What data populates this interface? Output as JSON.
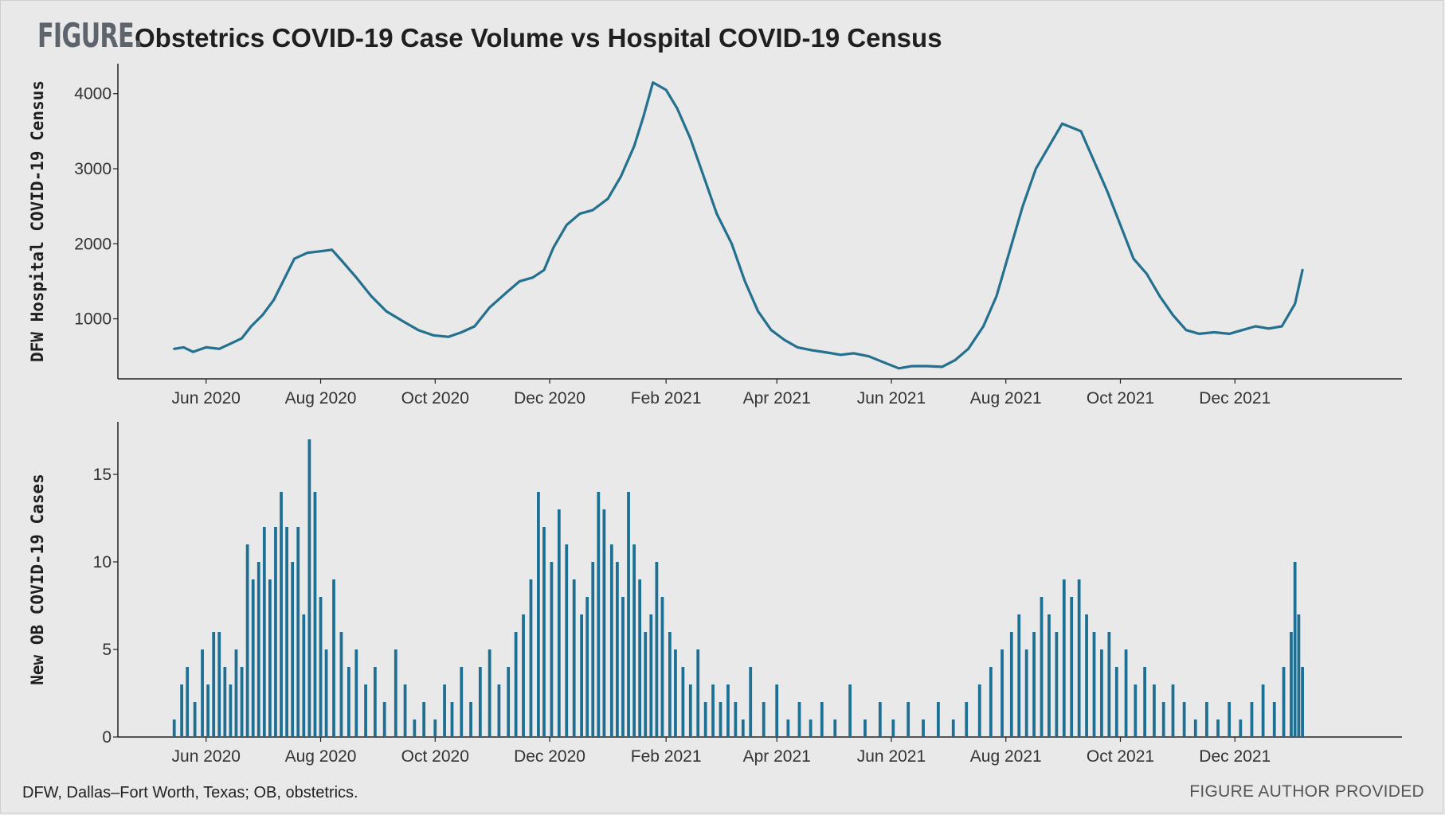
{
  "header": {
    "figure_label": "FIGURE.",
    "title": "Obstetrics COVID-19 Case Volume vs Hospital COVID-19 Census"
  },
  "footer": {
    "footnote": "DFW, Dallas–Fort Worth, Texas; OB, obstetrics.",
    "credit": "FIGURE AUTHOR PROVIDED"
  },
  "chart_data": [
    {
      "type": "line",
      "ylabel": "DFW Hospital COVID-19 Census",
      "xlabel": "",
      "color": "#24708f",
      "x_tick_labels": [
        "Jun 2020",
        "Aug 2020",
        "Oct 2020",
        "Dec 2020",
        "Feb 2021",
        "Apr 2021",
        "Jun 2021",
        "Aug 2021",
        "Oct 2021",
        "Dec 2021"
      ],
      "x_ticks": [
        "2020-06-01",
        "2020-08-01",
        "2020-10-01",
        "2020-12-01",
        "2021-02-01",
        "2021-04-01",
        "2021-06-01",
        "2021-08-01",
        "2021-10-01",
        "2021-12-01"
      ],
      "xlim": [
        "2020-04-15",
        "2022-02-28"
      ],
      "y_ticks": [
        1000,
        2000,
        3000,
        4000
      ],
      "ylim": [
        200,
        4400
      ],
      "series": [
        {
          "points": [
            [
              "2020-05-15",
              600
            ],
            [
              "2020-05-20",
              620
            ],
            [
              "2020-05-25",
              560
            ],
            [
              "2020-06-01",
              620
            ],
            [
              "2020-06-08",
              600
            ],
            [
              "2020-06-15",
              680
            ],
            [
              "2020-06-20",
              740
            ],
            [
              "2020-06-25",
              900
            ],
            [
              "2020-07-01",
              1050
            ],
            [
              "2020-07-07",
              1250
            ],
            [
              "2020-07-12",
              1500
            ],
            [
              "2020-07-18",
              1800
            ],
            [
              "2020-07-25",
              1880
            ],
            [
              "2020-08-01",
              1900
            ],
            [
              "2020-08-07",
              1920
            ],
            [
              "2020-08-12",
              1780
            ],
            [
              "2020-08-20",
              1550
            ],
            [
              "2020-08-28",
              1300
            ],
            [
              "2020-09-05",
              1100
            ],
            [
              "2020-09-15",
              950
            ],
            [
              "2020-09-22",
              850
            ],
            [
              "2020-09-30",
              780
            ],
            [
              "2020-10-08",
              760
            ],
            [
              "2020-10-15",
              820
            ],
            [
              "2020-10-22",
              900
            ],
            [
              "2020-10-30",
              1150
            ],
            [
              "2020-11-08",
              1350
            ],
            [
              "2020-11-15",
              1500
            ],
            [
              "2020-11-22",
              1550
            ],
            [
              "2020-11-28",
              1650
            ],
            [
              "2020-12-03",
              1950
            ],
            [
              "2020-12-10",
              2250
            ],
            [
              "2020-12-17",
              2400
            ],
            [
              "2020-12-24",
              2450
            ],
            [
              "2021-01-01",
              2600
            ],
            [
              "2021-01-08",
              2900
            ],
            [
              "2021-01-15",
              3300
            ],
            [
              "2021-01-20",
              3700
            ],
            [
              "2021-01-25",
              4150
            ],
            [
              "2021-02-01",
              4050
            ],
            [
              "2021-02-07",
              3800
            ],
            [
              "2021-02-14",
              3400
            ],
            [
              "2021-02-21",
              2900
            ],
            [
              "2021-02-28",
              2400
            ],
            [
              "2021-03-08",
              2000
            ],
            [
              "2021-03-15",
              1500
            ],
            [
              "2021-03-22",
              1100
            ],
            [
              "2021-03-29",
              850
            ],
            [
              "2021-04-05",
              720
            ],
            [
              "2021-04-12",
              620
            ],
            [
              "2021-04-20",
              580
            ],
            [
              "2021-04-28",
              550
            ],
            [
              "2021-05-05",
              520
            ],
            [
              "2021-05-12",
              540
            ],
            [
              "2021-05-20",
              500
            ],
            [
              "2021-05-28",
              420
            ],
            [
              "2021-06-05",
              340
            ],
            [
              "2021-06-12",
              370
            ],
            [
              "2021-06-20",
              370
            ],
            [
              "2021-06-28",
              360
            ],
            [
              "2021-07-05",
              450
            ],
            [
              "2021-07-12",
              600
            ],
            [
              "2021-07-20",
              900
            ],
            [
              "2021-07-27",
              1300
            ],
            [
              "2021-08-03",
              1900
            ],
            [
              "2021-08-10",
              2500
            ],
            [
              "2021-08-17",
              3000
            ],
            [
              "2021-08-24",
              3300
            ],
            [
              "2021-08-31",
              3600
            ],
            [
              "2021-09-05",
              3550
            ],
            [
              "2021-09-10",
              3500
            ],
            [
              "2021-09-17",
              3100
            ],
            [
              "2021-09-24",
              2700
            ],
            [
              "2021-10-01",
              2250
            ],
            [
              "2021-10-08",
              1800
            ],
            [
              "2021-10-15",
              1600
            ],
            [
              "2021-10-22",
              1300
            ],
            [
              "2021-10-29",
              1050
            ],
            [
              "2021-11-05",
              850
            ],
            [
              "2021-11-12",
              800
            ],
            [
              "2021-11-20",
              820
            ],
            [
              "2021-11-28",
              800
            ],
            [
              "2021-12-05",
              850
            ],
            [
              "2021-12-12",
              900
            ],
            [
              "2021-12-19",
              870
            ],
            [
              "2021-12-26",
              900
            ],
            [
              "2022-01-02",
              1200
            ],
            [
              "2022-01-06",
              1650
            ]
          ]
        }
      ]
    },
    {
      "type": "bar",
      "ylabel": "New OB COVID-19 Cases",
      "xlabel": "",
      "color": "#1d6f93",
      "x_tick_labels": [
        "Jun 2020",
        "Aug 2020",
        "Oct 2020",
        "Dec 2020",
        "Feb 2021",
        "Apr 2021",
        "Jun 2021",
        "Aug 2021",
        "Oct 2021",
        "Dec 2021"
      ],
      "x_ticks": [
        "2020-06-01",
        "2020-08-01",
        "2020-10-01",
        "2020-12-01",
        "2021-02-01",
        "2021-04-01",
        "2021-06-01",
        "2021-08-01",
        "2021-10-01",
        "2021-12-01"
      ],
      "xlim": [
        "2020-04-15",
        "2022-02-28"
      ],
      "y_ticks": [
        0,
        5,
        10,
        15
      ],
      "ylim": [
        0,
        18
      ],
      "bar_width_days": 1,
      "series": [
        {
          "points": [
            [
              "2020-05-15",
              1
            ],
            [
              "2020-05-19",
              3
            ],
            [
              "2020-05-22",
              4
            ],
            [
              "2020-05-26",
              2
            ],
            [
              "2020-05-30",
              5
            ],
            [
              "2020-06-02",
              3
            ],
            [
              "2020-06-05",
              6
            ],
            [
              "2020-06-08",
              6
            ],
            [
              "2020-06-11",
              4
            ],
            [
              "2020-06-14",
              3
            ],
            [
              "2020-06-17",
              5
            ],
            [
              "2020-06-20",
              4
            ],
            [
              "2020-06-23",
              11
            ],
            [
              "2020-06-26",
              9
            ],
            [
              "2020-06-29",
              10
            ],
            [
              "2020-07-02",
              12
            ],
            [
              "2020-07-05",
              9
            ],
            [
              "2020-07-08",
              12
            ],
            [
              "2020-07-11",
              14
            ],
            [
              "2020-07-14",
              12
            ],
            [
              "2020-07-17",
              10
            ],
            [
              "2020-07-20",
              12
            ],
            [
              "2020-07-23",
              7
            ],
            [
              "2020-07-26",
              17
            ],
            [
              "2020-07-29",
              14
            ],
            [
              "2020-08-01",
              8
            ],
            [
              "2020-08-04",
              5
            ],
            [
              "2020-08-08",
              9
            ],
            [
              "2020-08-12",
              6
            ],
            [
              "2020-08-16",
              4
            ],
            [
              "2020-08-20",
              5
            ],
            [
              "2020-08-25",
              3
            ],
            [
              "2020-08-30",
              4
            ],
            [
              "2020-09-04",
              2
            ],
            [
              "2020-09-10",
              5
            ],
            [
              "2020-09-15",
              3
            ],
            [
              "2020-09-20",
              1
            ],
            [
              "2020-09-25",
              2
            ],
            [
              "2020-10-01",
              1
            ],
            [
              "2020-10-06",
              3
            ],
            [
              "2020-10-10",
              2
            ],
            [
              "2020-10-15",
              4
            ],
            [
              "2020-10-20",
              2
            ],
            [
              "2020-10-25",
              4
            ],
            [
              "2020-10-30",
              5
            ],
            [
              "2020-11-04",
              3
            ],
            [
              "2020-11-09",
              4
            ],
            [
              "2020-11-13",
              6
            ],
            [
              "2020-11-17",
              7
            ],
            [
              "2020-11-21",
              9
            ],
            [
              "2020-11-25",
              14
            ],
            [
              "2020-11-28",
              12
            ],
            [
              "2020-12-02",
              10
            ],
            [
              "2020-12-06",
              13
            ],
            [
              "2020-12-10",
              11
            ],
            [
              "2020-12-14",
              9
            ],
            [
              "2020-12-18",
              7
            ],
            [
              "2020-12-21",
              8
            ],
            [
              "2020-12-24",
              10
            ],
            [
              "2020-12-27",
              14
            ],
            [
              "2020-12-30",
              13
            ],
            [
              "2021-01-03",
              11
            ],
            [
              "2021-01-06",
              10
            ],
            [
              "2021-01-09",
              8
            ],
            [
              "2021-01-12",
              14
            ],
            [
              "2021-01-15",
              11
            ],
            [
              "2021-01-18",
              9
            ],
            [
              "2021-01-21",
              6
            ],
            [
              "2021-01-24",
              7
            ],
            [
              "2021-01-27",
              10
            ],
            [
              "2021-01-30",
              8
            ],
            [
              "2021-02-03",
              6
            ],
            [
              "2021-02-06",
              5
            ],
            [
              "2021-02-10",
              4
            ],
            [
              "2021-02-14",
              3
            ],
            [
              "2021-02-18",
              5
            ],
            [
              "2021-02-22",
              2
            ],
            [
              "2021-02-26",
              3
            ],
            [
              "2021-03-02",
              2
            ],
            [
              "2021-03-06",
              3
            ],
            [
              "2021-03-10",
              2
            ],
            [
              "2021-03-14",
              1
            ],
            [
              "2021-03-18",
              4
            ],
            [
              "2021-03-25",
              2
            ],
            [
              "2021-04-01",
              3
            ],
            [
              "2021-04-07",
              1
            ],
            [
              "2021-04-13",
              2
            ],
            [
              "2021-04-19",
              1
            ],
            [
              "2021-04-25",
              2
            ],
            [
              "2021-05-02",
              1
            ],
            [
              "2021-05-10",
              3
            ],
            [
              "2021-05-18",
              1
            ],
            [
              "2021-05-26",
              2
            ],
            [
              "2021-06-02",
              1
            ],
            [
              "2021-06-10",
              2
            ],
            [
              "2021-06-18",
              1
            ],
            [
              "2021-06-26",
              2
            ],
            [
              "2021-07-04",
              1
            ],
            [
              "2021-07-11",
              2
            ],
            [
              "2021-07-18",
              3
            ],
            [
              "2021-07-24",
              4
            ],
            [
              "2021-07-30",
              5
            ],
            [
              "2021-08-04",
              6
            ],
            [
              "2021-08-08",
              7
            ],
            [
              "2021-08-12",
              5
            ],
            [
              "2021-08-16",
              6
            ],
            [
              "2021-08-20",
              8
            ],
            [
              "2021-08-24",
              7
            ],
            [
              "2021-08-28",
              6
            ],
            [
              "2021-09-01",
              9
            ],
            [
              "2021-09-05",
              8
            ],
            [
              "2021-09-09",
              9
            ],
            [
              "2021-09-13",
              7
            ],
            [
              "2021-09-17",
              6
            ],
            [
              "2021-09-21",
              5
            ],
            [
              "2021-09-25",
              6
            ],
            [
              "2021-09-29",
              4
            ],
            [
              "2021-10-04",
              5
            ],
            [
              "2021-10-09",
              3
            ],
            [
              "2021-10-14",
              4
            ],
            [
              "2021-10-19",
              3
            ],
            [
              "2021-10-24",
              2
            ],
            [
              "2021-10-29",
              3
            ],
            [
              "2021-11-04",
              2
            ],
            [
              "2021-11-10",
              1
            ],
            [
              "2021-11-16",
              2
            ],
            [
              "2021-11-22",
              1
            ],
            [
              "2021-11-28",
              2
            ],
            [
              "2021-12-04",
              1
            ],
            [
              "2021-12-10",
              2
            ],
            [
              "2021-12-16",
              3
            ],
            [
              "2021-12-22",
              2
            ],
            [
              "2021-12-27",
              4
            ],
            [
              "2021-12-31",
              6
            ],
            [
              "2022-01-02",
              10
            ],
            [
              "2022-01-04",
              7
            ],
            [
              "2022-01-06",
              4
            ]
          ]
        }
      ]
    }
  ]
}
